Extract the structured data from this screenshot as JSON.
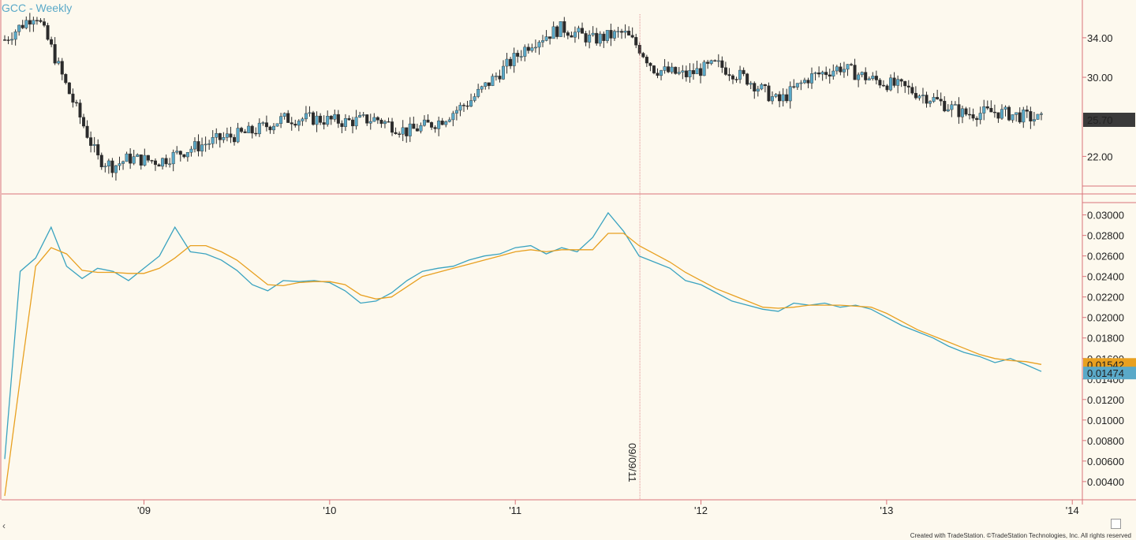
{
  "header": {
    "symbol_title": "GCC - Weekly"
  },
  "footer": {
    "credit": "Created with TradeStation. ©TradeStation Technologies, Inc. All rights reserved"
  },
  "colors": {
    "background": "#fdf9ee",
    "axis_red": "#d9747a",
    "candle_up": "#5aa9c8",
    "candle_down": "#2b2b2b",
    "series_blue": "#3aa3c0",
    "series_orange": "#e8a020",
    "last_price_bg": "#3a3a3a",
    "orange_label_bg": "#e8a020",
    "blue_label_bg": "#5aa9c8"
  },
  "icons": {
    "scroll_left": "chevron-left-icon",
    "corner": "square-icon"
  },
  "chart_data": [
    {
      "type": "candlestick",
      "title": "GCC - Weekly",
      "y_ticks": [
        "34.00",
        "30.00",
        "22.00"
      ],
      "x_ticks": [
        "'09",
        "'10",
        "'11",
        "'12",
        "'13",
        "'14"
      ],
      "last_price_label": "25.70",
      "vertical_marker_date": "09/09/11",
      "x": [
        "2008-04",
        "2008-06",
        "2008-07",
        "2008-08",
        "2008-09",
        "2008-10",
        "2008-11",
        "2008-12",
        "2009-02",
        "2009-04",
        "2009-06",
        "2009-08",
        "2009-10",
        "2009-12",
        "2010-02",
        "2010-04",
        "2010-06",
        "2010-08",
        "2010-10",
        "2010-12",
        "2011-02",
        "2011-04",
        "2011-06",
        "2011-08",
        "2011-09",
        "2011-10",
        "2011-12",
        "2012-02",
        "2012-04",
        "2012-06",
        "2012-08",
        "2012-10",
        "2012-12",
        "2013-02",
        "2013-04",
        "2013-06",
        "2013-08",
        "2013-10",
        "2013-11"
      ],
      "close": [
        33.8,
        36.5,
        33.0,
        29.0,
        25.5,
        21.8,
        21.0,
        21.8,
        21.5,
        22.8,
        23.8,
        24.5,
        25.8,
        25.8,
        25.5,
        25.8,
        24.5,
        25.5,
        27.5,
        30.5,
        33.5,
        35.0,
        33.8,
        34.5,
        33.0,
        30.8,
        30.2,
        31.3,
        29.8,
        27.5,
        30.0,
        31.0,
        29.8,
        29.0,
        27.8,
        26.3,
        26.5,
        26.0,
        25.7
      ],
      "ylim": [
        19,
        37.5
      ]
    },
    {
      "type": "line",
      "y_ticks": [
        "0.03000",
        "0.02800",
        "0.02600",
        "0.02400",
        "0.02200",
        "0.02000",
        "0.01800",
        "0.01600",
        "0.01400",
        "0.01200",
        "0.01000",
        "0.00800",
        "0.00600",
        "0.00400"
      ],
      "x_ticks": [
        "'09",
        "'10",
        "'11",
        "'12",
        "'13",
        "'14"
      ],
      "ylim": [
        0.0023,
        0.0312
      ],
      "x": [
        "2008-04",
        "2008-05",
        "2008-06",
        "2008-07",
        "2008-08",
        "2008-09",
        "2008-10",
        "2008-11",
        "2008-12",
        "2009-01",
        "2009-02",
        "2009-03",
        "2009-04",
        "2009-05",
        "2009-06",
        "2009-07",
        "2009-08",
        "2009-09",
        "2009-10",
        "2009-11",
        "2009-12",
        "2010-01",
        "2010-02",
        "2010-03",
        "2010-04",
        "2010-05",
        "2010-06",
        "2010-07",
        "2010-08",
        "2010-09",
        "2010-10",
        "2010-11",
        "2010-12",
        "2011-01",
        "2011-02",
        "2011-03",
        "2011-04",
        "2011-05",
        "2011-06",
        "2011-07",
        "2011-08",
        "2011-09",
        "2011-10",
        "2011-11",
        "2011-12",
        "2012-01",
        "2012-02",
        "2012-03",
        "2012-04",
        "2012-05",
        "2012-06",
        "2012-07",
        "2012-08",
        "2012-09",
        "2012-10",
        "2012-11",
        "2012-12",
        "2013-01",
        "2013-02",
        "2013-03",
        "2013-04",
        "2013-05",
        "2013-06",
        "2013-07",
        "2013-08",
        "2013-09",
        "2013-10",
        "2013-11"
      ],
      "series": [
        {
          "label": "0.01474",
          "values": [
            0.0062,
            0.0245,
            0.0258,
            0.0288,
            0.025,
            0.0238,
            0.0248,
            0.0245,
            0.0236,
            0.0248,
            0.026,
            0.0288,
            0.0264,
            0.0262,
            0.0256,
            0.0246,
            0.0232,
            0.0226,
            0.0236,
            0.0235,
            0.0236,
            0.0234,
            0.0226,
            0.0214,
            0.0216,
            0.0224,
            0.0236,
            0.0245,
            0.0248,
            0.025,
            0.0256,
            0.026,
            0.0262,
            0.0268,
            0.027,
            0.0262,
            0.0268,
            0.0264,
            0.0278,
            0.0302,
            0.0284,
            0.026,
            0.0254,
            0.0248,
            0.0236,
            0.0232,
            0.0224,
            0.0216,
            0.0212,
            0.0208,
            0.0206,
            0.0214,
            0.0212,
            0.0214,
            0.021,
            0.0212,
            0.0208,
            0.02,
            0.0192,
            0.0186,
            0.018,
            0.0172,
            0.0166,
            0.0162,
            0.0156,
            0.016,
            0.0154,
            0.01474
          ]
        },
        {
          "label": "0.01542",
          "values": [
            0.0026,
            0.014,
            0.025,
            0.0268,
            0.0262,
            0.0246,
            0.0244,
            0.0244,
            0.0243,
            0.0243,
            0.0248,
            0.0258,
            0.027,
            0.027,
            0.0264,
            0.0256,
            0.0244,
            0.0232,
            0.0231,
            0.0234,
            0.0235,
            0.0235,
            0.0232,
            0.0222,
            0.0218,
            0.022,
            0.023,
            0.024,
            0.0244,
            0.0248,
            0.0252,
            0.0256,
            0.026,
            0.0264,
            0.0266,
            0.0264,
            0.0266,
            0.0266,
            0.0266,
            0.0282,
            0.0282,
            0.027,
            0.0262,
            0.0254,
            0.0244,
            0.0236,
            0.0228,
            0.0222,
            0.0216,
            0.021,
            0.0209,
            0.021,
            0.0212,
            0.0212,
            0.0212,
            0.0211,
            0.021,
            0.0204,
            0.0196,
            0.0188,
            0.0182,
            0.0176,
            0.017,
            0.0164,
            0.016,
            0.0158,
            0.0157,
            0.01542
          ]
        }
      ]
    }
  ]
}
